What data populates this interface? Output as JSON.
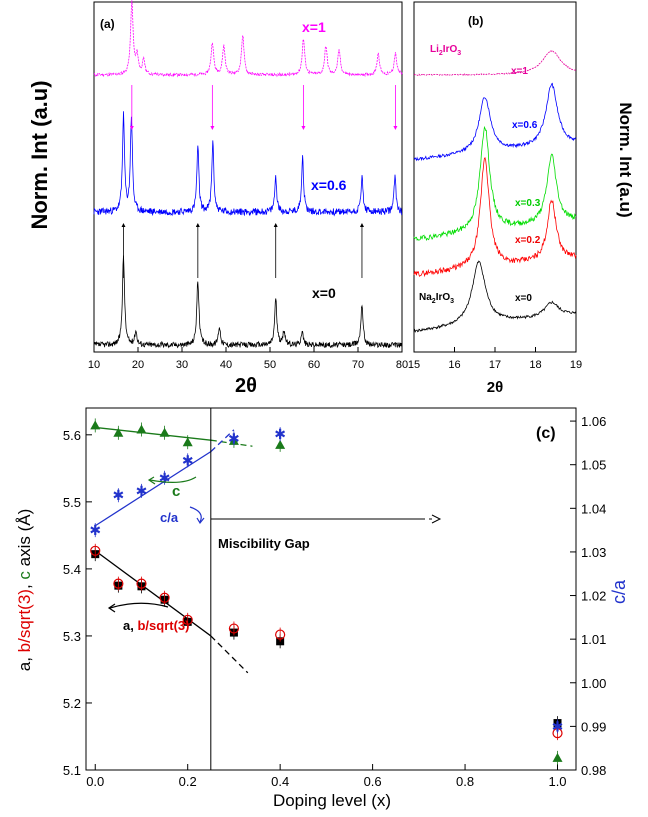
{
  "chart_data": [
    {
      "panel": "(a)",
      "type": "line",
      "xlabel": "2θ",
      "ylabel": "Norm. Int (a.u)",
      "xlim": [
        10,
        80
      ],
      "xticks": [
        10,
        20,
        30,
        40,
        50,
        60,
        70,
        80
      ],
      "series": [
        {
          "name": "x=1",
          "color": "#ff00ff",
          "peaks": [
            [
              18.6,
              1.0
            ],
            [
              19.8,
              0.25
            ],
            [
              21.3,
              0.2
            ],
            [
              36.9,
              0.45
            ],
            [
              39.5,
              0.4
            ],
            [
              43.8,
              0.55
            ],
            [
              57.6,
              0.5
            ],
            [
              62.7,
              0.4
            ],
            [
              65.7,
              0.35
            ],
            [
              74.6,
              0.3
            ],
            [
              78.5,
              0.3
            ]
          ]
        },
        {
          "name": "x=0.6",
          "color": "#0000ff",
          "peaks": [
            [
              16.7,
              0.95
            ],
            [
              18.5,
              0.95
            ],
            [
              33.6,
              0.65
            ],
            [
              37.0,
              0.7
            ],
            [
              51.3,
              0.35
            ],
            [
              57.4,
              0.55
            ],
            [
              70.9,
              0.35
            ],
            [
              78.4,
              0.35
            ]
          ]
        },
        {
          "name": "x=0",
          "color": "#000000",
          "peaks": [
            [
              16.7,
              0.95
            ],
            [
              19.5,
              0.15
            ],
            [
              33.6,
              0.7
            ],
            [
              38.5,
              0.2
            ],
            [
              51.3,
              0.5
            ],
            [
              53.2,
              0.15
            ],
            [
              57.3,
              0.15
            ],
            [
              70.9,
              0.45
            ]
          ]
        }
      ],
      "arrows": {
        "x=1_to_x=0.6": [
          18.6,
          36.9,
          57.6,
          78.5
        ],
        "x=0_to_x=0.6": [
          16.7,
          33.6,
          51.3,
          70.9
        ]
      }
    },
    {
      "panel": "(b)",
      "type": "line",
      "xlabel": "2θ",
      "ylabel": "Norm. Int (a.u)",
      "xlim": [
        15,
        19
      ],
      "xticks": [
        15,
        16,
        17,
        18,
        19
      ],
      "series": [
        {
          "name": "x=1",
          "color": "#e6009a",
          "label_prefix": "Li",
          "label_sub": "2",
          "label_suffix": "IrO",
          "label_sub2": "3",
          "peaks": [
            [
              18.4,
              0.6
            ]
          ]
        },
        {
          "name": "x=0.6",
          "color": "#0000ff",
          "peaks": [
            [
              16.75,
              0.9
            ],
            [
              18.4,
              1.0
            ]
          ]
        },
        {
          "name": "x=0.3",
          "color": "#00dd00",
          "peaks": [
            [
              16.75,
              1.0
            ],
            [
              18.4,
              0.65
            ]
          ]
        },
        {
          "name": "x=0.2",
          "color": "#ff0000",
          "peaks": [
            [
              16.75,
              1.0
            ],
            [
              18.4,
              0.55
            ]
          ]
        },
        {
          "name": "x=0",
          "color": "#000000",
          "label_prefix": "Na",
          "label_sub": "2",
          "label_suffix": "IrO",
          "label_sub2": "3",
          "peaks": [
            [
              16.6,
              0.9
            ],
            [
              18.4,
              0.2
            ]
          ]
        }
      ]
    },
    {
      "panel": "(c)",
      "type": "scatter",
      "xlabel": "Doping level (x)",
      "xlim": [
        -0.02,
        1.04
      ],
      "xticks": [
        "0.0",
        "0.2",
        "0.4",
        "0.6",
        "0.8",
        "1.0"
      ],
      "ylabel_parts": [
        "a, ",
        "b/sqrt(3)",
        ", ",
        "c",
        " axis (Å)"
      ],
      "ylim": [
        5.1,
        5.64
      ],
      "yticks": [
        "5.1",
        "5.2",
        "5.3",
        "5.4",
        "5.5",
        "5.6"
      ],
      "y2label": "c/a",
      "y2lim": [
        0.98,
        1.063
      ],
      "y2ticks": [
        "0.98",
        "0.99",
        "1.00",
        "1.01",
        "1.02",
        "1.03",
        "1.04",
        "1.05",
        "1.06"
      ],
      "series": [
        {
          "name": "a",
          "color": "#000000",
          "marker": "square",
          "axis": "left",
          "x": [
            0.0,
            0.05,
            0.1,
            0.15,
            0.2,
            0.3,
            0.4,
            1.0
          ],
          "y": [
            5.422,
            5.375,
            5.374,
            5.354,
            5.321,
            5.305,
            5.292,
            5.17
          ]
        },
        {
          "name": "b/sqrt(3)",
          "color": "#dd0000",
          "marker": "open-circle",
          "axis": "left",
          "x": [
            0.0,
            0.05,
            0.1,
            0.15,
            0.2,
            0.3,
            0.4,
            1.0
          ],
          "y": [
            5.427,
            5.378,
            5.378,
            5.357,
            5.324,
            5.311,
            5.302,
            5.155
          ]
        },
        {
          "name": "c",
          "color": "#1a7a1a",
          "marker": "triangle",
          "axis": "left",
          "x": [
            0.0,
            0.05,
            0.1,
            0.15,
            0.2,
            0.3,
            0.4,
            1.0
          ],
          "y": [
            5.614,
            5.603,
            5.608,
            5.603,
            5.589,
            5.591,
            5.585,
            5.118
          ]
        },
        {
          "name": "c/a",
          "color": "#2233cc",
          "marker": "star",
          "axis": "right",
          "x": [
            0.0,
            0.05,
            0.1,
            0.15,
            0.2,
            0.3,
            0.4,
            1.0
          ],
          "y": [
            1.035,
            1.043,
            1.044,
            1.047,
            1.051,
            1.056,
            1.057,
            0.99
          ]
        }
      ],
      "fits": [
        {
          "name": "a",
          "color": "#000000",
          "x0": 0.0,
          "y0": 5.427,
          "x1": 0.25,
          "y1": 5.3,
          "dash_to_x": 0.33,
          "dash_to_y": 5.245,
          "axis": "left"
        },
        {
          "name": "c",
          "color": "#1a7a1a",
          "x0": 0.0,
          "y0": 5.611,
          "x1": 0.25,
          "y1": 5.592,
          "dash_to_x": 0.34,
          "dash_to_y": 5.583,
          "axis": "left"
        },
        {
          "name": "c/a",
          "color": "#2233cc",
          "x0": 0.0,
          "y0": 1.036,
          "x1": 0.25,
          "y1": 1.053,
          "dash_to_x": 0.3,
          "dash_to_y": 1.058,
          "axis": "right"
        }
      ],
      "annotations": {
        "miscibility_gap": "Miscibility Gap",
        "gap_x": 0.25,
        "label_c": "c",
        "label_ca": "c/a",
        "label_a_parts": [
          "a, ",
          "b/sqrt(3)"
        ]
      }
    }
  ]
}
